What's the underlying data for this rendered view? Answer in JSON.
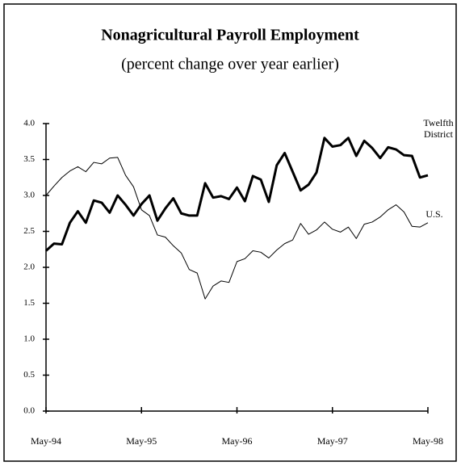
{
  "chart_data": {
    "type": "line",
    "title": "Nonagricultural Payroll Employment",
    "subtitle": "(percent change over year earlier)",
    "categories": [
      "May-94",
      null,
      null,
      null,
      null,
      null,
      null,
      null,
      null,
      null,
      null,
      null,
      "May-95",
      null,
      null,
      null,
      null,
      null,
      null,
      null,
      null,
      null,
      null,
      null,
      "May-96",
      null,
      null,
      null,
      null,
      null,
      null,
      null,
      null,
      null,
      null,
      null,
      "May-97",
      null,
      null,
      null,
      null,
      null,
      null,
      null,
      null,
      null,
      null,
      null,
      "May-98"
    ],
    "series": [
      {
        "name": "Twelfth District",
        "color": "#000000",
        "width": 3,
        "values": [
          2.23,
          2.33,
          2.32,
          2.62,
          2.78,
          2.62,
          2.93,
          2.9,
          2.76,
          3.0,
          2.87,
          2.72,
          2.88,
          3.0,
          2.65,
          2.82,
          2.96,
          2.75,
          2.72,
          2.72,
          3.17,
          2.97,
          2.99,
          2.95,
          3.11,
          2.92,
          3.27,
          3.22,
          2.91,
          3.42,
          3.59,
          3.33,
          3.07,
          3.15,
          3.32,
          3.8,
          3.68,
          3.7,
          3.8,
          3.55,
          3.76,
          3.66,
          3.52,
          3.67,
          3.64,
          3.56,
          3.55,
          3.25,
          3.28
        ]
      },
      {
        "name": "U.S.",
        "color": "#000000",
        "width": 1,
        "values": [
          3.0,
          3.13,
          3.25,
          3.34,
          3.4,
          3.33,
          3.46,
          3.44,
          3.52,
          3.53,
          3.28,
          3.12,
          2.8,
          2.72,
          2.45,
          2.42,
          2.3,
          2.2,
          1.97,
          1.92,
          1.56,
          1.74,
          1.81,
          1.79,
          2.08,
          2.12,
          2.23,
          2.21,
          2.13,
          2.24,
          2.33,
          2.38,
          2.61,
          2.46,
          2.52,
          2.63,
          2.53,
          2.49,
          2.56,
          2.4,
          2.6,
          2.63,
          2.7,
          2.8,
          2.87,
          2.77,
          2.57,
          2.56,
          2.62
        ]
      }
    ],
    "ylim": [
      0,
      4
    ],
    "yticks": [
      {
        "value": 0,
        "label": "0.0"
      },
      {
        "value": 0.5,
        "label": "0.5"
      },
      {
        "value": 1,
        "label": "1.0"
      },
      {
        "value": 1.5,
        "label": "1.5"
      },
      {
        "value": 2,
        "label": "2.0"
      },
      {
        "value": 2.5,
        "label": "2.5"
      },
      {
        "value": 3,
        "label": "3.0"
      },
      {
        "value": 3.5,
        "label": "3.5"
      },
      {
        "value": 4,
        "label": "4.0"
      }
    ],
    "grid": false
  }
}
